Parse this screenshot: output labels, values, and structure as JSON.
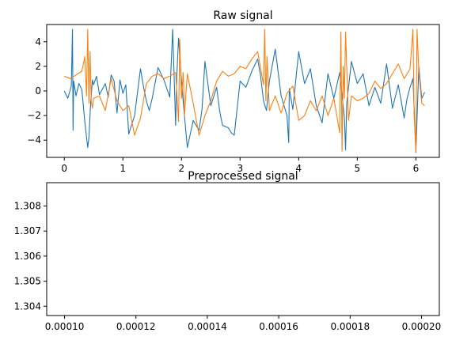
{
  "chart_data": [
    {
      "type": "line",
      "title": "Raw signal",
      "xlabel": "",
      "ylabel": "",
      "xlim": [
        -0.3,
        6.4
      ],
      "ylim": [
        -5.4,
        5.4
      ],
      "x_ticks": [
        0,
        1,
        2,
        3,
        4,
        5,
        6
      ],
      "x_tick_labels": [
        "0",
        "1",
        "2",
        "3",
        "4",
        "5",
        "6"
      ],
      "y_ticks": [
        -4,
        -2,
        0,
        2,
        4
      ],
      "y_tick_labels": [
        "−4",
        "−2",
        "0",
        "2",
        "4"
      ],
      "grid": false,
      "series": [
        {
          "color": "#1f77b4",
          "x": [
            0.0,
            0.06,
            0.12,
            0.14,
            0.15,
            0.16,
            0.18,
            0.2,
            0.25,
            0.3,
            0.35,
            0.4,
            0.42,
            0.45,
            0.48,
            0.5,
            0.55,
            0.6,
            0.7,
            0.75,
            0.8,
            0.85,
            0.9,
            0.95,
            1.0,
            1.05,
            1.1,
            1.2,
            1.3,
            1.35,
            1.4,
            1.45,
            1.5,
            1.6,
            1.7,
            1.8,
            1.85,
            1.9,
            1.92,
            1.95,
            2.0,
            2.05,
            2.1,
            2.2,
            2.3,
            2.35,
            2.4,
            2.5,
            2.6,
            2.65,
            2.7,
            2.8,
            2.85,
            2.9,
            3.0,
            3.1,
            3.2,
            3.3,
            3.35,
            3.4,
            3.45,
            3.5,
            3.6,
            3.7,
            3.8,
            3.83,
            3.84,
            3.9,
            4.0,
            4.1,
            4.2,
            4.3,
            4.4,
            4.5,
            4.6,
            4.7,
            4.78,
            4.8,
            4.82,
            4.9,
            5.0,
            5.1,
            5.2,
            5.3,
            5.4,
            5.5,
            5.6,
            5.7,
            5.8,
            5.85,
            5.9,
            5.95,
            6.0,
            6.05,
            6.1,
            6.15
          ],
          "values": [
            0.0,
            -0.6,
            0.4,
            5.0,
            -3.2,
            0.8,
            0.2,
            -0.4,
            0.6,
            0.1,
            -2.5,
            -4.6,
            -3.8,
            -1.0,
            0.9,
            0.5,
            1.2,
            -0.3,
            0.6,
            -0.5,
            1.3,
            0.8,
            -1.8,
            0.9,
            -0.2,
            0.5,
            -3.5,
            -2.0,
            1.8,
            0.4,
            -0.8,
            -1.6,
            -0.6,
            1.9,
            0.9,
            -0.5,
            5.0,
            -2.8,
            1.2,
            4.3,
            0.8,
            -2.0,
            -4.6,
            -2.4,
            -3.2,
            -1.5,
            2.4,
            -1.2,
            0.3,
            -1.6,
            -2.8,
            -3.0,
            -3.4,
            -3.6,
            0.8,
            0.3,
            1.6,
            2.6,
            1.2,
            -0.8,
            -1.6,
            0.8,
            3.4,
            -0.4,
            -2.0,
            -4.2,
            0.2,
            -1.5,
            3.2,
            0.6,
            1.8,
            -1.2,
            -2.6,
            1.4,
            -0.6,
            1.5,
            -2.2,
            -4.8,
            -1.0,
            2.4,
            0.6,
            1.4,
            -1.2,
            0.3,
            -1.0,
            2.2,
            -1.4,
            0.5,
            -2.2,
            -0.6,
            0.3,
            1.0,
            -5.0,
            2.0,
            -0.6,
            -0.1
          ]
        },
        {
          "color": "#ff7f0e",
          "x": [
            0.0,
            0.1,
            0.2,
            0.3,
            0.35,
            0.38,
            0.4,
            0.42,
            0.44,
            0.46,
            0.48,
            0.5,
            0.6,
            0.7,
            0.8,
            0.9,
            1.0,
            1.1,
            1.2,
            1.3,
            1.4,
            1.5,
            1.6,
            1.7,
            1.8,
            1.9,
            1.95,
            1.97,
            2.0,
            2.03,
            2.05,
            2.1,
            2.2,
            2.3,
            2.4,
            2.5,
            2.6,
            2.7,
            2.8,
            2.9,
            3.0,
            3.1,
            3.2,
            3.3,
            3.4,
            3.42,
            3.44,
            3.46,
            3.5,
            3.6,
            3.7,
            3.8,
            3.9,
            4.0,
            4.1,
            4.2,
            4.3,
            4.4,
            4.5,
            4.6,
            4.7,
            4.72,
            4.74,
            4.76,
            4.78,
            4.8,
            4.85,
            4.9,
            5.0,
            5.1,
            5.2,
            5.3,
            5.4,
            5.5,
            5.6,
            5.7,
            5.8,
            5.9,
            5.95,
            5.97,
            6.0,
            6.02,
            6.05,
            6.1,
            6.15
          ],
          "values": [
            1.2,
            1.0,
            1.3,
            1.6,
            2.8,
            -0.4,
            5.0,
            -1.0,
            3.2,
            -0.8,
            -1.4,
            -0.6,
            -0.4,
            -1.6,
            1.0,
            -0.8,
            -1.6,
            -1.2,
            -3.6,
            -2.2,
            0.6,
            1.2,
            1.4,
            1.0,
            1.2,
            1.5,
            -2.5,
            4.2,
            -0.6,
            1.5,
            -2.0,
            1.4,
            -1.0,
            -3.6,
            -2.0,
            -0.8,
            0.8,
            1.6,
            1.2,
            1.4,
            2.0,
            1.8,
            2.6,
            3.2,
            0.5,
            5.0,
            -0.8,
            2.8,
            -1.6,
            -0.4,
            -1.8,
            -0.2,
            0.4,
            -2.4,
            -2.0,
            -0.8,
            -1.6,
            -0.4,
            -2.0,
            -0.6,
            -3.4,
            4.8,
            -4.9,
            2.0,
            -0.6,
            4.8,
            -2.4,
            -0.4,
            -0.8,
            -0.6,
            -0.2,
            0.8,
            0.2,
            0.6,
            1.4,
            2.2,
            1.0,
            1.8,
            5.0,
            -2.0,
            -4.9,
            5.0,
            1.6,
            -1.0,
            -1.2
          ]
        }
      ]
    },
    {
      "type": "line",
      "title": "Preprocessed signal",
      "xlabel": "",
      "ylabel": "",
      "xlim": [
        9.5e-05,
        0.000205
      ],
      "ylim": [
        1.30363,
        1.30893
      ],
      "x_ticks": [
        0.0001,
        0.00012,
        0.00014,
        0.00016,
        0.00018,
        0.0002
      ],
      "x_tick_labels": [
        "0.00010",
        "0.00012",
        "0.00014",
        "0.00016",
        "0.00018",
        "0.00020"
      ],
      "y_ticks": [
        1.304,
        1.305,
        1.306,
        1.307,
        1.308
      ],
      "y_tick_labels": [
        "1.304",
        "1.305",
        "1.306",
        "1.307",
        "1.308"
      ],
      "grid": false,
      "series": []
    }
  ]
}
